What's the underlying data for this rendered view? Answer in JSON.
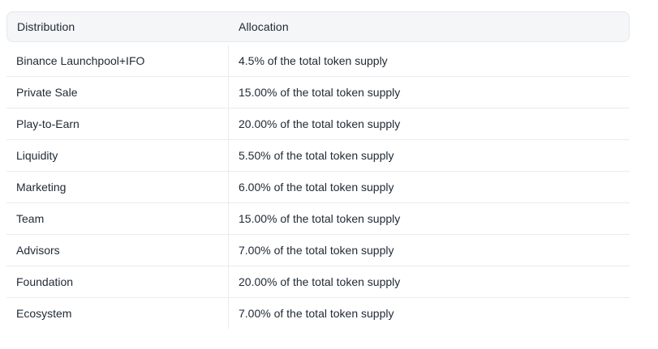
{
  "table": {
    "columns": [
      {
        "label": "Distribution"
      },
      {
        "label": "Allocation"
      }
    ],
    "rows": [
      {
        "distribution": "Binance Launchpool+IFO",
        "allocation": "4.5% of the total token supply"
      },
      {
        "distribution": "Private Sale",
        "allocation": "15.00% of the total token supply"
      },
      {
        "distribution": "Play-to-Earn",
        "allocation": "20.00% of the total token supply"
      },
      {
        "distribution": "Liquidity",
        "allocation": "5.50% of the total token supply"
      },
      {
        "distribution": "Marketing",
        "allocation": "6.00% of the total token supply"
      },
      {
        "distribution": "Team",
        "allocation": "15.00% of the total token supply"
      },
      {
        "distribution": "Advisors",
        "allocation": "7.00% of the total token supply"
      },
      {
        "distribution": "Foundation",
        "allocation": "20.00% of the total token supply"
      },
      {
        "distribution": "Ecosystem",
        "allocation": "7.00% of the total token supply"
      }
    ],
    "colors": {
      "header_bg": "#f4f6f8",
      "header_border": "#e5e8ed",
      "row_divider": "#e9ebef",
      "text": "#212b36",
      "page_bg": "#ffffff"
    }
  }
}
